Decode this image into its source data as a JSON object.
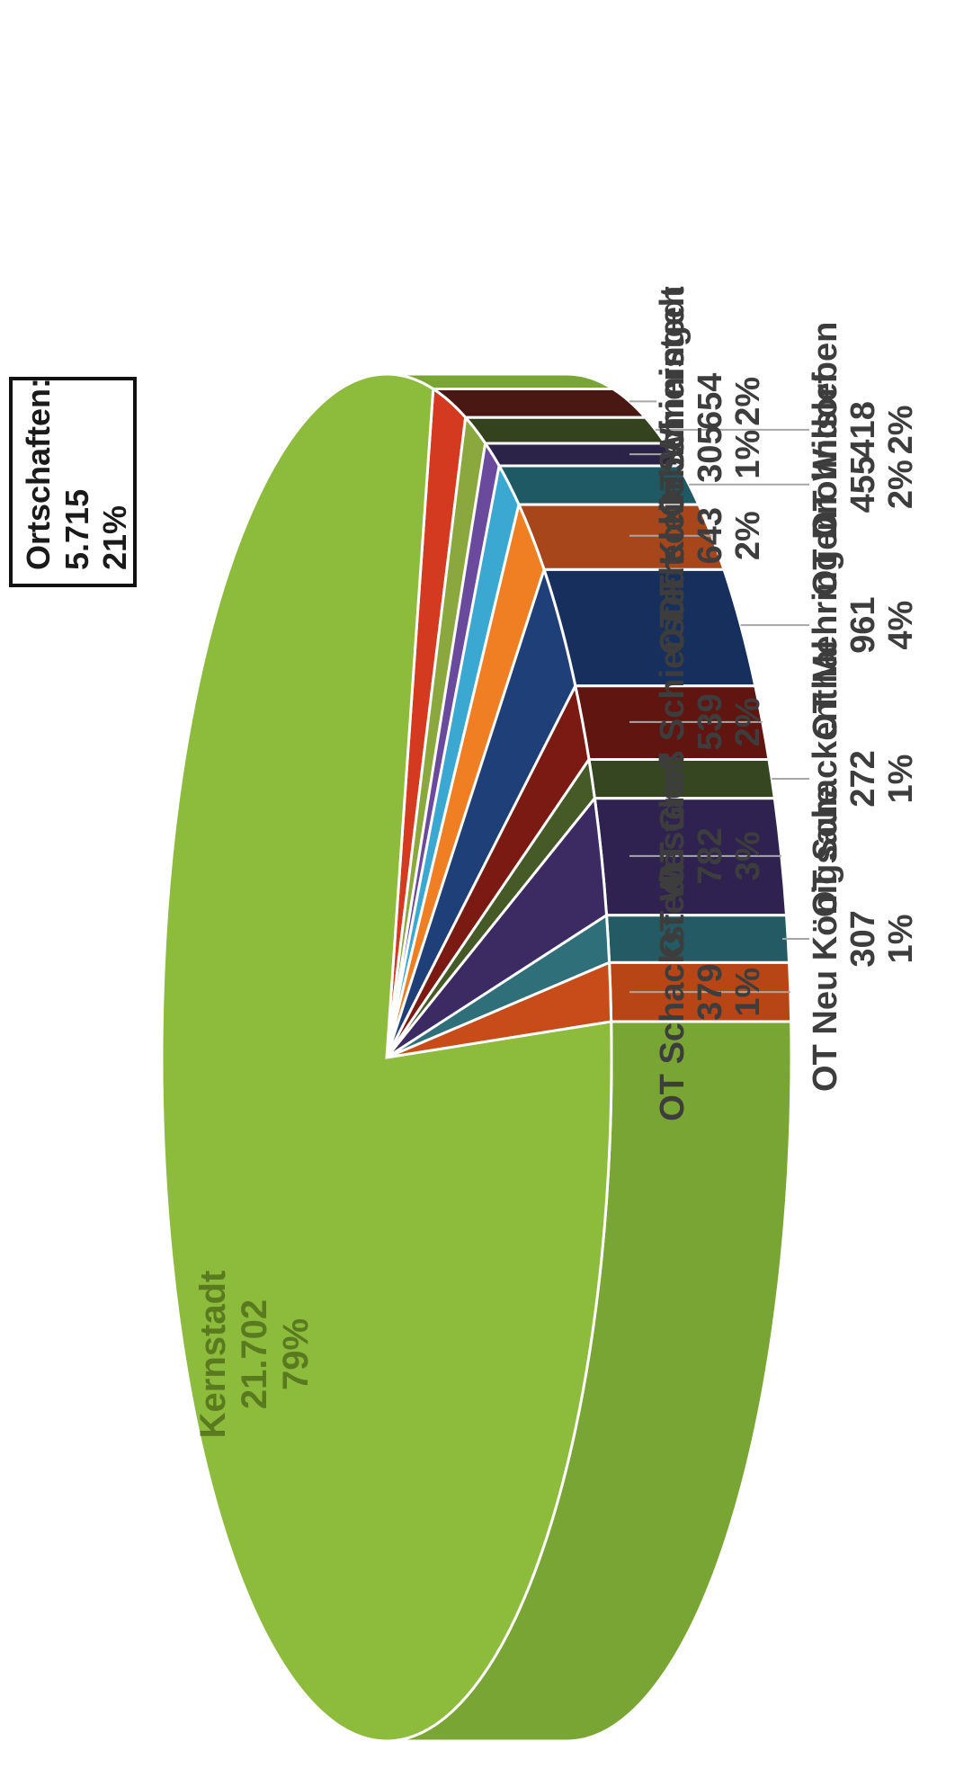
{
  "chart_data": {
    "type": "pie",
    "style": "3d-exploded",
    "orientation": "rotated-90-counterclockwise",
    "total_box": {
      "line1": "Ortschaften:",
      "line2": "5.715",
      "line3": "21%"
    },
    "slices": [
      {
        "label": "Kernstadt",
        "value_text": "21.702",
        "percent_text": "79%",
        "value": 21702,
        "color": "#8dbb3c",
        "side": "#79a534"
      },
      {
        "label": "OT Schackstedt",
        "value_text": "379",
        "percent_text": "1%",
        "value": 379,
        "color": "#c84c1a",
        "side": "#b84516"
      },
      {
        "label": "OT Neu Königsaue",
        "value_text": "307",
        "percent_text": "1%",
        "value": 307,
        "color": "#2e6f7a",
        "side": "#245a63"
      },
      {
        "label": "OT Westdorf",
        "value_text": "782",
        "percent_text": "3%",
        "value": 782,
        "color": "#3c2a63",
        "side": "#2f2150"
      },
      {
        "label": "OT Schackenthal",
        "value_text": "272",
        "percent_text": "1%",
        "value": 272,
        "color": "#465a28",
        "side": "#364620"
      },
      {
        "label": "OT Groß Schierstedt",
        "value_text": "539",
        "percent_text": "2%",
        "value": 539,
        "color": "#7a1a12",
        "side": "#601510"
      },
      {
        "label": "OT Mehringen",
        "value_text": "961",
        "percent_text": "4%",
        "value": 961,
        "color": "#1f3f78",
        "side": "#172f5c"
      },
      {
        "label": "OT Freckleben",
        "value_text": "643",
        "percent_text": "2%",
        "value": 643,
        "color": "#f07f24",
        "side": "#a8461b"
      },
      {
        "label": "OT Drohndorf",
        "value_text": "455",
        "percent_text": "2%",
        "value": 455,
        "color": "#3aa8d0",
        "side": "#1f5a64"
      },
      {
        "label": "OT Klein Schierstedt",
        "value_text": "305",
        "percent_text": "1%",
        "value": 305,
        "color": "#6a4a9c",
        "side": "#2c2448"
      },
      {
        "label": "OT Wilsleben",
        "value_text": "418",
        "percent_text": "2%",
        "value": 418,
        "color": "#8aa83e",
        "side": "#35421e"
      },
      {
        "label": "OT Winningen",
        "value_text": "654",
        "percent_text": "2%",
        "value": 654,
        "color": "#d43a1f",
        "side": "#4a1812"
      }
    ]
  },
  "colors": {
    "background": "#ffffff",
    "leader_line": "#a6a6a6",
    "slice_border": "#ffffff"
  }
}
